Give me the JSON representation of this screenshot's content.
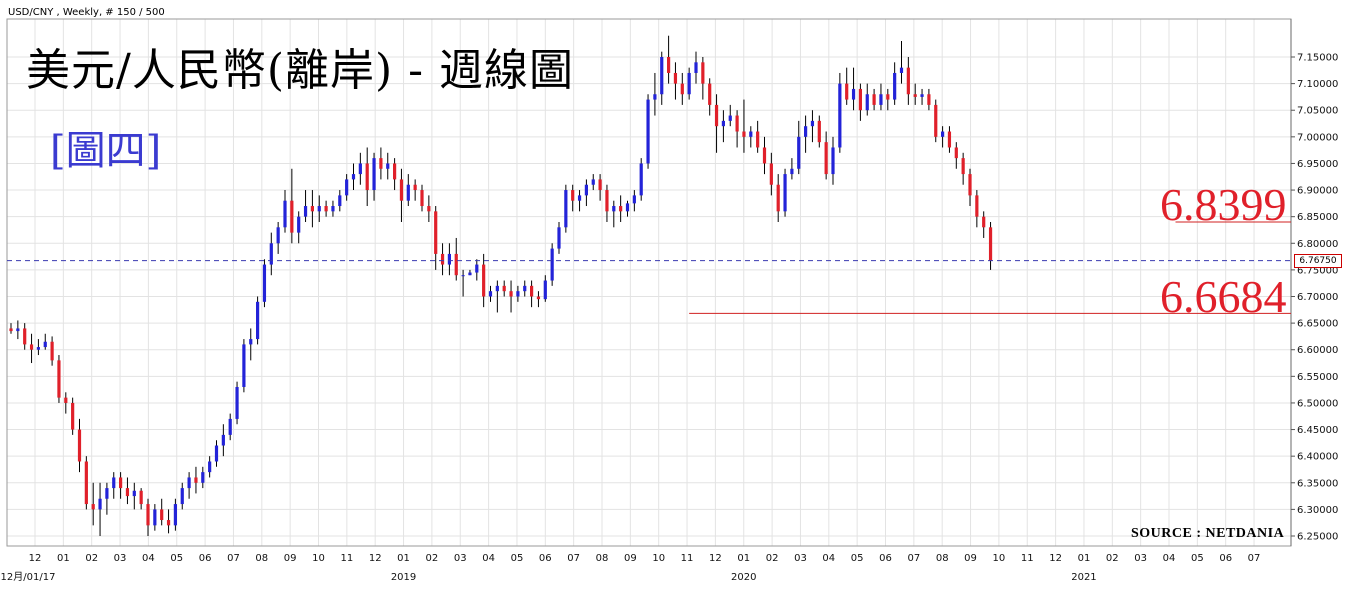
{
  "header": {
    "instrument_line": "USD/CNY  , Weekly, # 150 / 500"
  },
  "title": "美元/人民幣(離岸) - 週線圖",
  "subtitle": "[圖四]",
  "source": "SOURCE : NETDANIA",
  "current_price_tag": "6.76750",
  "levels": {
    "high_label": "6.8399",
    "low_label": "6.6684"
  },
  "colors": {
    "up": "#2323d8",
    "down": "#e0202a",
    "grid": "#e3e3e3",
    "level_line": "#d02020",
    "price_line": "#3a3ab0"
  },
  "chart_data": {
    "type": "candlestick",
    "ylim": [
      6.23,
      7.2
    ],
    "y_ticks": [
      "6.25000",
      "6.30000",
      "6.35000",
      "6.40000",
      "6.45000",
      "6.50000",
      "6.55000",
      "6.60000",
      "6.65000",
      "6.70000",
      "6.75000",
      "6.80000",
      "6.85000",
      "6.90000",
      "6.95000",
      "7.00000",
      "7.05000",
      "7.10000",
      "7.15000"
    ],
    "x_month_labels": [
      "12",
      "01",
      "02",
      "03",
      "04",
      "05",
      "06",
      "07",
      "08",
      "09",
      "10",
      "11",
      "12",
      "01",
      "02",
      "03",
      "04",
      "05",
      "06",
      "07",
      "08",
      "09",
      "10",
      "11",
      "12",
      "01",
      "02",
      "03",
      "04",
      "05",
      "06",
      "07",
      "08",
      "09",
      "10",
      "11",
      "12",
      "01",
      "02",
      "03",
      "04",
      "05",
      "06",
      "07"
    ],
    "x_year_labels": [
      {
        "label": "12月/01/17",
        "month_index": 0
      },
      {
        "label": "2019",
        "month_index": 13
      },
      {
        "label": "2020",
        "month_index": 25
      },
      {
        "label": "2021",
        "month_index": 37
      }
    ],
    "current_price": 6.7675,
    "support_resistance": [
      {
        "value": 6.8399,
        "from_week": 170
      },
      {
        "value": 6.6684,
        "from_week": 99
      }
    ],
    "candles_note": "weekly OHLC approximations from chart",
    "candles": [
      [
        6.64,
        6.65,
        6.63,
        6.635
      ],
      [
        6.635,
        6.655,
        6.62,
        6.64
      ],
      [
        6.64,
        6.65,
        6.6,
        6.61
      ],
      [
        6.61,
        6.63,
        6.575,
        6.6
      ],
      [
        6.6,
        6.62,
        6.59,
        6.605
      ],
      [
        6.605,
        6.63,
        6.6,
        6.615
      ],
      [
        6.615,
        6.625,
        6.57,
        6.58
      ],
      [
        6.58,
        6.59,
        6.5,
        6.51
      ],
      [
        6.51,
        6.52,
        6.48,
        6.5
      ],
      [
        6.5,
        6.51,
        6.44,
        6.45
      ],
      [
        6.45,
        6.47,
        6.37,
        6.39
      ],
      [
        6.39,
        6.4,
        6.3,
        6.31
      ],
      [
        6.31,
        6.35,
        6.27,
        6.3
      ],
      [
        6.3,
        6.35,
        6.25,
        6.32
      ],
      [
        6.32,
        6.35,
        6.29,
        6.34
      ],
      [
        6.34,
        6.37,
        6.32,
        6.36
      ],
      [
        6.36,
        6.37,
        6.32,
        6.34
      ],
      [
        6.34,
        6.36,
        6.31,
        6.325
      ],
      [
        6.325,
        6.35,
        6.3,
        6.335
      ],
      [
        6.335,
        6.34,
        6.3,
        6.31
      ],
      [
        6.31,
        6.32,
        6.25,
        6.27
      ],
      [
        6.27,
        6.31,
        6.26,
        6.3
      ],
      [
        6.3,
        6.32,
        6.27,
        6.28
      ],
      [
        6.28,
        6.3,
        6.255,
        6.27
      ],
      [
        6.27,
        6.32,
        6.26,
        6.31
      ],
      [
        6.31,
        6.35,
        6.3,
        6.34
      ],
      [
        6.34,
        6.37,
        6.32,
        6.36
      ],
      [
        6.36,
        6.38,
        6.33,
        6.35
      ],
      [
        6.35,
        6.38,
        6.34,
        6.37
      ],
      [
        6.37,
        6.4,
        6.36,
        6.39
      ],
      [
        6.39,
        6.43,
        6.38,
        6.42
      ],
      [
        6.42,
        6.46,
        6.4,
        6.44
      ],
      [
        6.44,
        6.48,
        6.43,
        6.47
      ],
      [
        6.47,
        6.54,
        6.46,
        6.53
      ],
      [
        6.53,
        6.62,
        6.52,
        6.61
      ],
      [
        6.61,
        6.64,
        6.58,
        6.62
      ],
      [
        6.62,
        6.7,
        6.61,
        6.69
      ],
      [
        6.69,
        6.77,
        6.68,
        6.76
      ],
      [
        6.76,
        6.82,
        6.74,
        6.8
      ],
      [
        6.8,
        6.84,
        6.78,
        6.83
      ],
      [
        6.83,
        6.9,
        6.82,
        6.88
      ],
      [
        6.88,
        6.94,
        6.8,
        6.82
      ],
      [
        6.82,
        6.86,
        6.8,
        6.85
      ],
      [
        6.85,
        6.9,
        6.84,
        6.87
      ],
      [
        6.87,
        6.9,
        6.83,
        6.86
      ],
      [
        6.86,
        6.89,
        6.84,
        6.87
      ],
      [
        6.87,
        6.88,
        6.85,
        6.86
      ],
      [
        6.86,
        6.88,
        6.85,
        6.87
      ],
      [
        6.87,
        6.9,
        6.86,
        6.89
      ],
      [
        6.89,
        6.93,
        6.88,
        6.92
      ],
      [
        6.92,
        6.95,
        6.9,
        6.93
      ],
      [
        6.93,
        6.97,
        6.91,
        6.95
      ],
      [
        6.95,
        6.98,
        6.87,
        6.9
      ],
      [
        6.9,
        6.97,
        6.88,
        6.96
      ],
      [
        6.96,
        6.98,
        6.92,
        6.94
      ],
      [
        6.94,
        6.97,
        6.92,
        6.95
      ],
      [
        6.95,
        6.96,
        6.9,
        6.92
      ],
      [
        6.92,
        6.94,
        6.84,
        6.88
      ],
      [
        6.88,
        6.93,
        6.87,
        6.91
      ],
      [
        6.91,
        6.92,
        6.88,
        6.9
      ],
      [
        6.9,
        6.91,
        6.86,
        6.87
      ],
      [
        6.87,
        6.89,
        6.84,
        6.86
      ],
      [
        6.86,
        6.87,
        6.75,
        6.78
      ],
      [
        6.78,
        6.8,
        6.74,
        6.76
      ],
      [
        6.76,
        6.8,
        6.74,
        6.78
      ],
      [
        6.78,
        6.81,
        6.73,
        6.74
      ],
      [
        6.74,
        6.75,
        6.7,
        6.74
      ],
      [
        6.74,
        6.75,
        6.74,
        6.745
      ],
      [
        6.745,
        6.77,
        6.73,
        6.76
      ],
      [
        6.76,
        6.78,
        6.68,
        6.7
      ],
      [
        6.7,
        6.72,
        6.69,
        6.71
      ],
      [
        6.71,
        6.73,
        6.67,
        6.72
      ],
      [
        6.72,
        6.73,
        6.7,
        6.71
      ],
      [
        6.71,
        6.73,
        6.67,
        6.7
      ],
      [
        6.7,
        6.72,
        6.69,
        6.71
      ],
      [
        6.71,
        6.73,
        6.7,
        6.72
      ],
      [
        6.72,
        6.73,
        6.68,
        6.7
      ],
      [
        6.7,
        6.71,
        6.68,
        6.695
      ],
      [
        6.695,
        6.74,
        6.69,
        6.73
      ],
      [
        6.73,
        6.8,
        6.72,
        6.79
      ],
      [
        6.79,
        6.84,
        6.78,
        6.83
      ],
      [
        6.83,
        6.91,
        6.82,
        6.9
      ],
      [
        6.9,
        6.91,
        6.86,
        6.88
      ],
      [
        6.88,
        6.9,
        6.86,
        6.89
      ],
      [
        6.89,
        6.92,
        6.87,
        6.91
      ],
      [
        6.91,
        6.93,
        6.9,
        6.92
      ],
      [
        6.92,
        6.93,
        6.88,
        6.9
      ],
      [
        6.9,
        6.91,
        6.84,
        6.86
      ],
      [
        6.86,
        6.88,
        6.83,
        6.87
      ],
      [
        6.87,
        6.89,
        6.84,
        6.86
      ],
      [
        6.86,
        6.88,
        6.85,
        6.875
      ],
      [
        6.875,
        6.9,
        6.86,
        6.89
      ],
      [
        6.89,
        6.96,
        6.88,
        6.95
      ],
      [
        6.95,
        7.08,
        6.94,
        7.07
      ],
      [
        7.07,
        7.12,
        7.04,
        7.08
      ],
      [
        7.08,
        7.16,
        7.06,
        7.15
      ],
      [
        7.15,
        7.19,
        7.1,
        7.12
      ],
      [
        7.12,
        7.14,
        7.07,
        7.1
      ],
      [
        7.1,
        7.12,
        7.06,
        7.08
      ],
      [
        7.08,
        7.13,
        7.07,
        7.12
      ],
      [
        7.12,
        7.16,
        7.1,
        7.14
      ],
      [
        7.14,
        7.15,
        7.07,
        7.1
      ],
      [
        7.1,
        7.11,
        7.04,
        7.06
      ],
      [
        7.06,
        7.08,
        6.97,
        7.02
      ],
      [
        7.02,
        7.05,
        6.99,
        7.03
      ],
      [
        7.03,
        7.06,
        7.02,
        7.04
      ],
      [
        7.04,
        7.05,
        6.98,
        7.01
      ],
      [
        7.01,
        7.07,
        6.97,
        7.0
      ],
      [
        7.0,
        7.02,
        6.98,
        7.01
      ],
      [
        7.01,
        7.03,
        6.97,
        6.98
      ],
      [
        6.98,
        7.0,
        6.93,
        6.95
      ],
      [
        6.95,
        6.97,
        6.89,
        6.91
      ],
      [
        6.91,
        6.93,
        6.84,
        6.86
      ],
      [
        6.86,
        6.94,
        6.85,
        6.93
      ],
      [
        6.93,
        6.96,
        6.92,
        6.94
      ],
      [
        6.94,
        7.03,
        6.93,
        7.0
      ],
      [
        7.0,
        7.04,
        6.97,
        7.02
      ],
      [
        7.02,
        7.05,
        6.99,
        7.03
      ],
      [
        7.03,
        7.04,
        6.98,
        6.99
      ],
      [
        6.99,
        7.01,
        6.92,
        6.93
      ],
      [
        6.93,
        7.0,
        6.91,
        6.98
      ],
      [
        6.98,
        7.12,
        6.97,
        7.1
      ],
      [
        7.1,
        7.13,
        7.06,
        7.07
      ],
      [
        7.07,
        7.13,
        7.05,
        7.09
      ],
      [
        7.09,
        7.1,
        7.03,
        7.05
      ],
      [
        7.05,
        7.1,
        7.04,
        7.08
      ],
      [
        7.08,
        7.09,
        7.05,
        7.06
      ],
      [
        7.06,
        7.1,
        7.05,
        7.08
      ],
      [
        7.08,
        7.09,
        7.05,
        7.07
      ],
      [
        7.07,
        7.14,
        7.06,
        7.12
      ],
      [
        7.12,
        7.18,
        7.1,
        7.13
      ],
      [
        7.13,
        7.15,
        7.06,
        7.08
      ],
      [
        7.08,
        7.1,
        7.06,
        7.075
      ],
      [
        7.075,
        7.09,
        7.06,
        7.08
      ],
      [
        7.08,
        7.09,
        7.05,
        7.06
      ],
      [
        7.06,
        7.07,
        6.99,
        7.0
      ],
      [
        7.0,
        7.02,
        6.98,
        7.01
      ],
      [
        7.01,
        7.02,
        6.97,
        6.98
      ],
      [
        6.98,
        6.99,
        6.94,
        6.96
      ],
      [
        6.96,
        6.97,
        6.91,
        6.93
      ],
      [
        6.93,
        6.94,
        6.87,
        6.89
      ],
      [
        6.89,
        6.9,
        6.83,
        6.85
      ],
      [
        6.85,
        6.86,
        6.81,
        6.83
      ],
      [
        6.83,
        6.84,
        6.75,
        6.7675
      ]
    ]
  }
}
